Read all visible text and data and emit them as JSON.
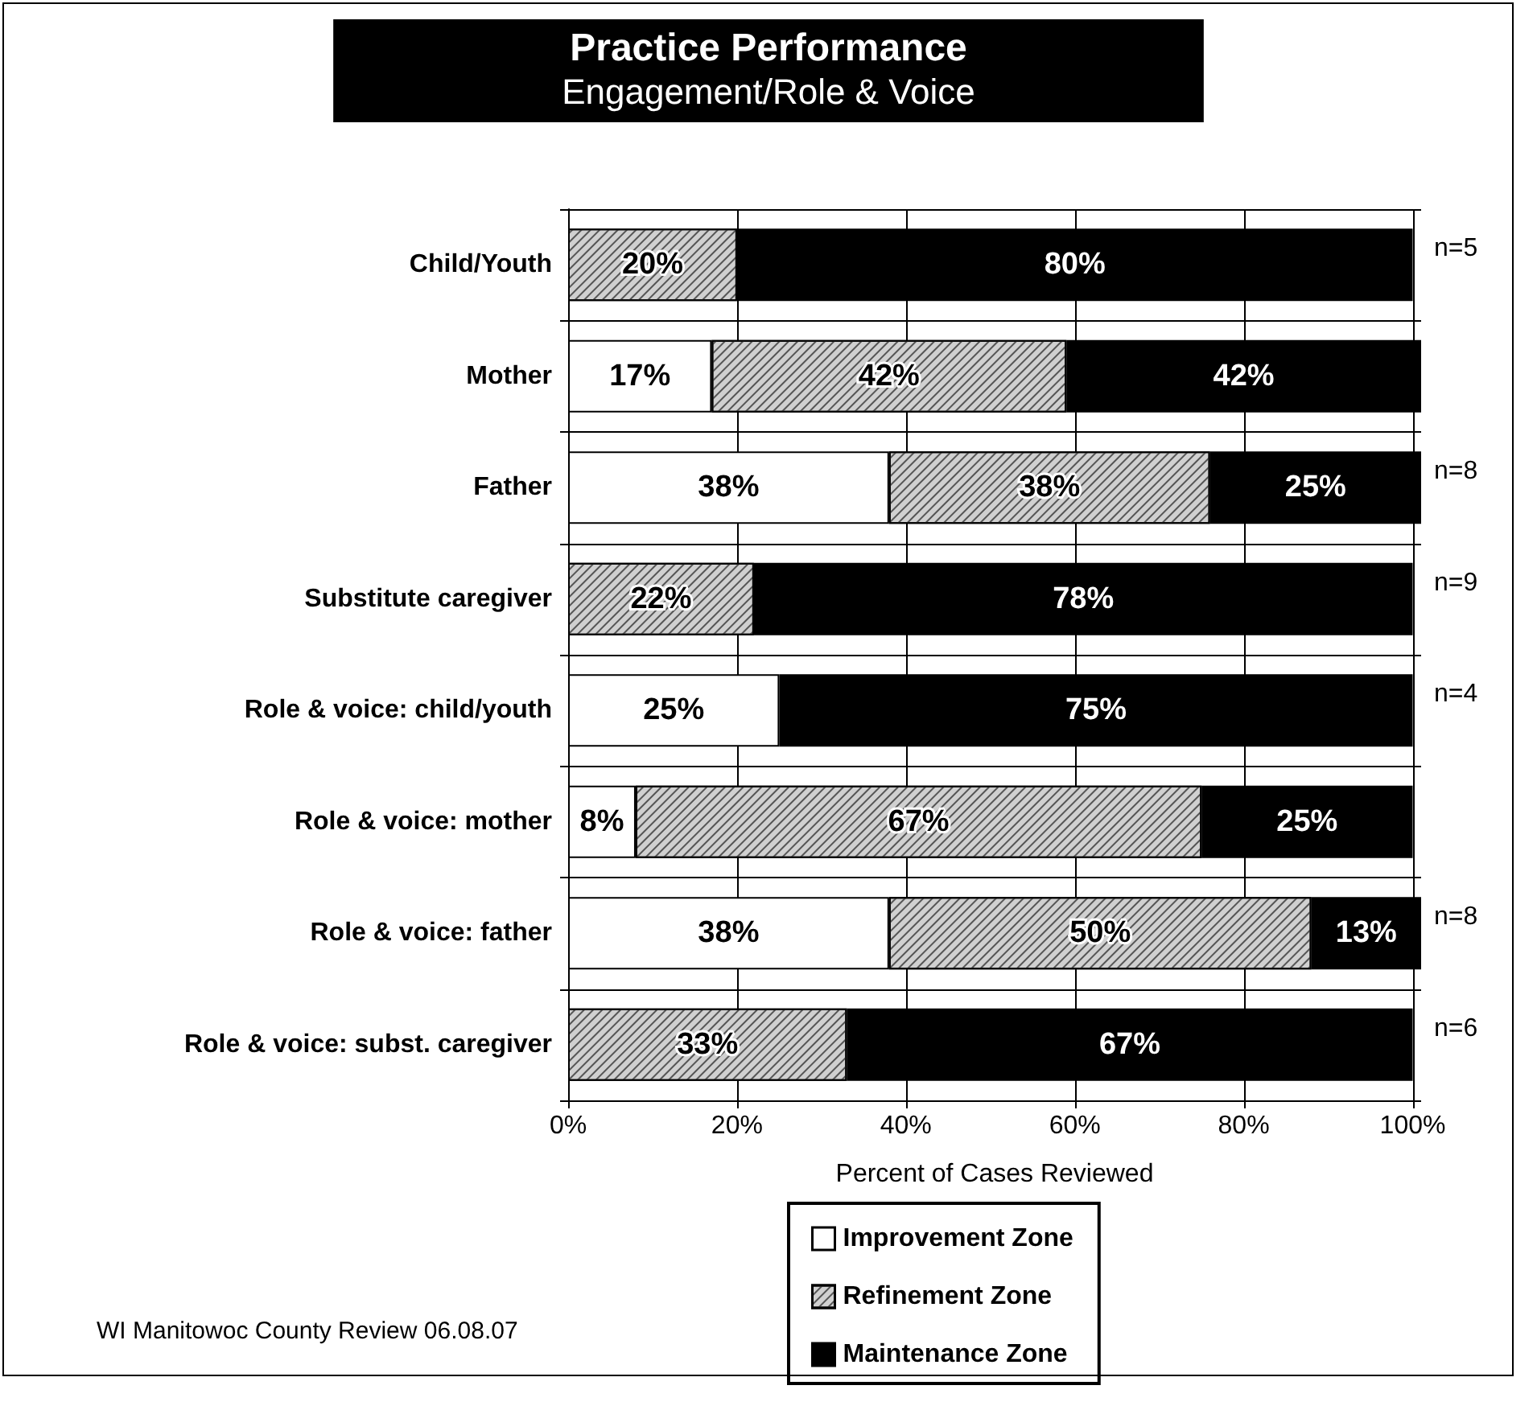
{
  "chart_data": {
    "type": "bar",
    "orientation": "horizontal",
    "stacked": true,
    "title": "Practice Performance",
    "subtitle": "Engagement/Role & Voice",
    "xlabel": "Percent of Cases Reviewed",
    "categories": [
      "Child/Youth",
      "Mother",
      "Father",
      "Substitute caregiver",
      "Role & voice: child/youth",
      "Role & voice: mother",
      "Role & voice: father",
      "Role & voice: subst. caregiver"
    ],
    "series": [
      {
        "name": "Improvement Zone",
        "color": "#ffffff",
        "values": [
          null,
          17,
          38,
          null,
          25,
          8,
          38,
          null
        ],
        "value_labels": [
          null,
          "17%",
          "38%",
          null,
          "25%",
          "8%",
          "38%",
          null
        ]
      },
      {
        "name": "Refinement Zone",
        "color": "#d0d0d0",
        "values": [
          20,
          42,
          38,
          22,
          null,
          67,
          50,
          33
        ],
        "value_labels": [
          "20%",
          "42%",
          "38%",
          "22%",
          null,
          "67%",
          "50%",
          "33%"
        ]
      },
      {
        "name": "Maintenance Zone",
        "color": "#000000",
        "values": [
          80,
          42,
          25,
          78,
          75,
          25,
          13,
          67
        ],
        "value_labels": [
          "80%",
          "42%",
          "25%",
          "78%",
          "75%",
          "25%",
          "13%",
          "67%"
        ]
      }
    ],
    "xlim": [
      0,
      101
    ],
    "xticks": [
      {
        "value": 0,
        "label": "0%"
      },
      {
        "value": 20,
        "label": "20%"
      },
      {
        "value": 40,
        "label": "40%"
      },
      {
        "value": 60,
        "label": "60%"
      },
      {
        "value": 80,
        "label": "80%"
      },
      {
        "value": 100,
        "label": "100%"
      }
    ],
    "grid": true,
    "legend": "bottom",
    "annotations": [
      "n=5",
      "n=8",
      "n=9",
      "n=4",
      "n=8",
      "n=6",
      "WI Manitowoc County Review 06.08.07"
    ]
  }
}
